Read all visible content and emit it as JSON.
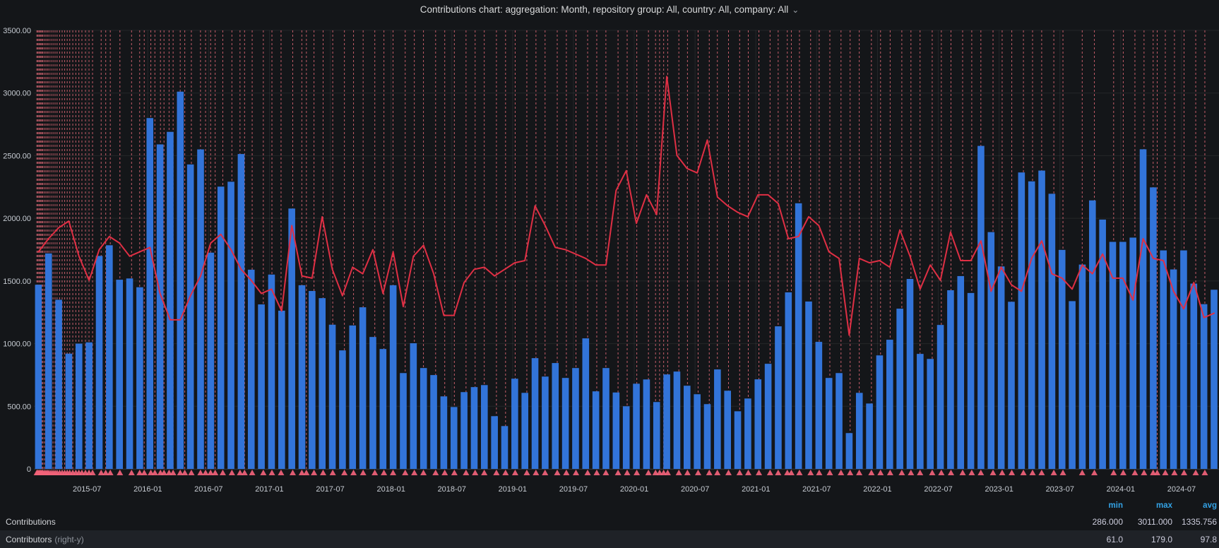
{
  "panel": {
    "title": "Contributions chart: aggregation: Month, repository group: All, country: All, company: All",
    "chevron": "⌄"
  },
  "colors": {
    "background": "#141619",
    "bar": "#3274d9",
    "line": "#e02f44",
    "annotation": "#ff7584",
    "annotation_marker": "#f2637a",
    "grid": "rgba(255,255,255,0.07)",
    "axis_text": "#c7ccd3",
    "legend_header": "#33a2e5",
    "legend_row_alt_bg": "#1f2227"
  },
  "chart_data": {
    "type": "bar",
    "title": "Contributions chart: aggregation: Month, repository group: All, country: All, company: All",
    "start_month": "2015-02",
    "xlabel": "",
    "ylabel": "",
    "y_axis": {
      "min": 0,
      "max": 3500,
      "ticks": [
        {
          "v": 3500,
          "label": "3500.00"
        },
        {
          "v": 3000,
          "label": "3000.00"
        },
        {
          "v": 2500,
          "label": "2500.00"
        },
        {
          "v": 2000,
          "label": "2000.00"
        },
        {
          "v": 1500,
          "label": "1500.00"
        },
        {
          "v": 1000,
          "label": "1000.00"
        },
        {
          "v": 500,
          "label": "500.00"
        },
        {
          "v": 0,
          "label": "0"
        }
      ]
    },
    "right_y_axis": {
      "min": 0,
      "max": 200,
      "shown": false
    },
    "x_ticks": [
      {
        "m": 5,
        "label": "2015-07"
      },
      {
        "m": 11,
        "label": "2016-01"
      },
      {
        "m": 17,
        "label": "2016-07"
      },
      {
        "m": 23,
        "label": "2017-01"
      },
      {
        "m": 29,
        "label": "2017-07"
      },
      {
        "m": 35,
        "label": "2018-01"
      },
      {
        "m": 41,
        "label": "2018-07"
      },
      {
        "m": 47,
        "label": "2019-01"
      },
      {
        "m": 53,
        "label": "2019-07"
      },
      {
        "m": 59,
        "label": "2020-01"
      },
      {
        "m": 65,
        "label": "2020-07"
      },
      {
        "m": 71,
        "label": "2021-01"
      },
      {
        "m": 77,
        "label": "2021-07"
      },
      {
        "m": 83,
        "label": "2022-01"
      },
      {
        "m": 89,
        "label": "2022-07"
      },
      {
        "m": 95,
        "label": "2023-01"
      },
      {
        "m": 101,
        "label": "2023-07"
      },
      {
        "m": 107,
        "label": "2024-01"
      },
      {
        "m": 113,
        "label": "2024-07"
      }
    ],
    "series": [
      {
        "name": "Contributions",
        "type": "bar",
        "axis": "left",
        "color": "#3274d9",
        "values": [
          1470,
          1720,
          1350,
          920,
          1000,
          1010,
          1700,
          1785,
          1510,
          1520,
          1450,
          2800,
          2590,
          2690,
          3011,
          2430,
          2550,
          1726,
          2253,
          2292,
          2513,
          1590,
          1313,
          1551,
          1263,
          2078,
          1466,
          1420,
          1363,
          1151,
          946,
          1145,
          1290,
          1053,
          957,
          1466,
          765,
          1003,
          805,
          749,
          579,
          494,
          613,
          653,
          669,
          421,
          342,
          720,
          607,
          884,
          737,
          845,
          726,
          805,
          1042,
          619,
          805,
          610,
          500,
          680,
          714,
          534,
          754,
          777,
          664,
          596,
          517,
          794,
          624,
          460,
          562,
          715,
          839,
          1138,
          1409,
          2120,
          1336,
          1014,
          726,
          765,
          286,
          607,
          522,
          906,
          1031,
          1279,
          1516,
          918,
          878,
          1149,
          1426,
          1539,
          1404,
          2578,
          1890,
          1616,
          1334,
          2366,
          2295,
          2381,
          2196,
          1748,
          1339,
          1631,
          2143,
          1990,
          1812,
          1812,
          1846,
          2551,
          2247,
          1744,
          1592,
          1744,
          1479,
          1315,
          1430
        ]
      },
      {
        "name": "Contributors",
        "type": "line",
        "axis": "right-y",
        "color": "#e02f44",
        "values": [
          99,
          105,
          110,
          113,
          97,
          86,
          100,
          106,
          103,
          97,
          99,
          101,
          80,
          68,
          68,
          79,
          88,
          103,
          107,
          100,
          91,
          86,
          80,
          82,
          72,
          111,
          88,
          87,
          115,
          91,
          79,
          92,
          89,
          100,
          80,
          99,
          74,
          97,
          102,
          89,
          70,
          70,
          85,
          91,
          92,
          88,
          91,
          94,
          95,
          120,
          111,
          101,
          100,
          98,
          96,
          93,
          93,
          127,
          136,
          112,
          125,
          116,
          179,
          143,
          137,
          135,
          150,
          124,
          120,
          117,
          115,
          125,
          125,
          121,
          105,
          106,
          115,
          111,
          99,
          96,
          61,
          96,
          94,
          95,
          92,
          109,
          97,
          82,
          93,
          86,
          108,
          95,
          95,
          104,
          81,
          92,
          84,
          81,
          96,
          104,
          89,
          87,
          82,
          93,
          89,
          98,
          87,
          87,
          77,
          105,
          96,
          95,
          81,
          73,
          85,
          69,
          71
        ]
      }
    ],
    "annotations_m": [
      0.05,
      0.15,
      0.25,
      0.35,
      0.45,
      0.55,
      0.65,
      0.8,
      0.95,
      1.1,
      1.25,
      1.45,
      1.65,
      1.85,
      2.05,
      2.3,
      2.55,
      2.8,
      3.05,
      3.3,
      3.6,
      3.9,
      4.2,
      4.5,
      4.85,
      5.2,
      5.55,
      6.4,
      6.85,
      7.3,
      8.25,
      9.4,
      10.2,
      10.65,
      11.3,
      11.7,
      12.25,
      12.6,
      13.1,
      13.5,
      14.2,
      14.65,
      15.3,
      16.2,
      16.7,
      17.2,
      17.65,
      18.4,
      19.3,
      20.1,
      20.55,
      21.3,
      22.4,
      23.25,
      24.15,
      25.3,
      26.2,
      26.65,
      27.4,
      28.3,
      29.25,
      30.4,
      31.3,
      32.25,
      33.4,
      34.3,
      35.2,
      36.4,
      37.3,
      38.2,
      39.4,
      40.3,
      41.25,
      42.4,
      43.3,
      44.2,
      45.4,
      46.3,
      47.25,
      48.4,
      49.3,
      50.2,
      51.4,
      52.3,
      53.25,
      54.4,
      55.3,
      56.2,
      57.4,
      58.3,
      59.25,
      60.4,
      61.1,
      61.5,
      61.9,
      62.3,
      63.4,
      64.25,
      65.3,
      66.4,
      67.2,
      68.3,
      69.4,
      70.25,
      71.3,
      72.4,
      73.2,
      74.1,
      74.5,
      75.3,
      76.4,
      77.25,
      78.3,
      79.4,
      80.3,
      81.2,
      82.4,
      83.3,
      84.25,
      85.4,
      86.3,
      87.2,
      88.4,
      89.3,
      90.25,
      91.4,
      92.3,
      93.2,
      94.4,
      95.3,
      96.25,
      97.4,
      98.3,
      99.2,
      100.4,
      101.3,
      103.2,
      104.4,
      106.3,
      107.25,
      108.4,
      109.3,
      110.2,
      110.6,
      111.4,
      112.3,
      113.25,
      114.4,
      115.3
    ],
    "legend_position": "bottom",
    "grid": true
  },
  "legend": {
    "headers": {
      "min": "min",
      "max": "max",
      "avg": "avg"
    },
    "rows": [
      {
        "name": "Contributions",
        "suffix": "",
        "min": "286.000",
        "max": "3011.000",
        "avg": "1335.756"
      },
      {
        "name": "Contributors",
        "suffix": "(right-y)",
        "min": "61.0",
        "max": "179.0",
        "avg": "97.8"
      }
    ]
  }
}
